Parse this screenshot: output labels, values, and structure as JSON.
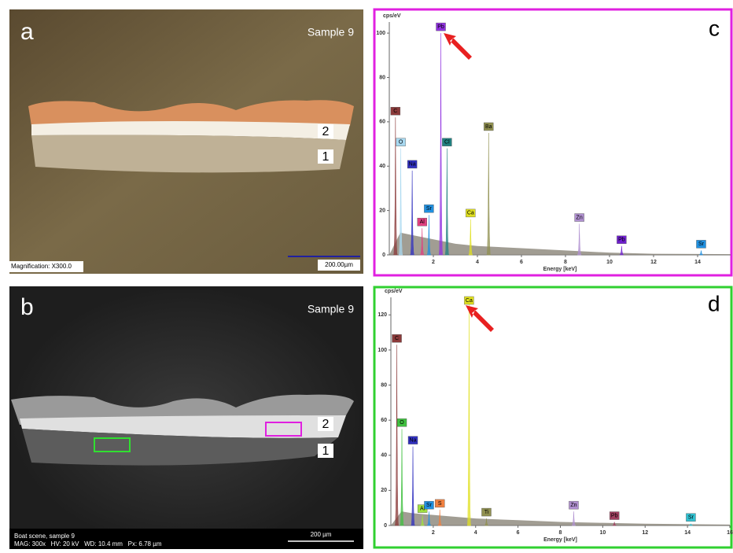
{
  "panel_a": {
    "letter": "a",
    "sample": "Sample 9",
    "layer_top": "2",
    "layer_bottom": "1",
    "magnification": "Magnification: X300.0",
    "scale": "200.00µm"
  },
  "panel_b": {
    "letter": "b",
    "sample": "Sample 9",
    "layer_top": "2",
    "layer_bottom": "1",
    "caption": "Boat scene, sample 9",
    "settings": "MAG: 300x   HV: 20 kV   WD: 10.4 mm   Px: 6.78 µm",
    "scale": "200 µm"
  },
  "chart_data": [
    {
      "type": "spectrum",
      "letter": "c",
      "y_label": "cps/eV",
      "x_label": "Energy [keV]",
      "border_color": "#e020e0",
      "xlim": [
        0,
        15.5
      ],
      "xticks": [
        2,
        4,
        6,
        8,
        10,
        12,
        14
      ],
      "ylim": [
        0,
        105
      ],
      "yticks": [
        0,
        20,
        40,
        60,
        80,
        100
      ],
      "background": {
        "x": [
          0,
          0.5,
          1,
          2,
          3,
          4,
          6,
          8,
          10,
          12,
          15.5
        ],
        "values": [
          0,
          10,
          9,
          7,
          5,
          4,
          3,
          2,
          1,
          0.5,
          0.3
        ]
      },
      "peaks": [
        {
          "label": "C",
          "color": "#8b3a3a",
          "x": 0.28,
          "y": 62
        },
        {
          "label": "O",
          "color": "#a8d8f0",
          "x": 0.52,
          "y": 48
        },
        {
          "label": "Na",
          "color": "#3030c0",
          "x": 1.04,
          "y": 38
        },
        {
          "label": "Al",
          "color": "#e04080",
          "x": 1.49,
          "y": 12
        },
        {
          "label": "Sr",
          "color": "#2090e0",
          "x": 1.8,
          "y": 18
        },
        {
          "label": "Pb",
          "color": "#9030e0",
          "x": 2.34,
          "y": 100
        },
        {
          "label": "Cl",
          "color": "#208080",
          "x": 2.62,
          "y": 48
        },
        {
          "label": "Ca",
          "color": "#e0e020",
          "x": 3.69,
          "y": 16
        },
        {
          "label": "Ba",
          "color": "#909050",
          "x": 4.51,
          "y": 55
        },
        {
          "label": "Zn",
          "color": "#b090d0",
          "x": 8.63,
          "y": 14
        },
        {
          "label": "Pb",
          "color": "#7020d0",
          "x": 10.55,
          "y": 4
        },
        {
          "label": "Sr",
          "color": "#2090e0",
          "x": 14.16,
          "y": 2
        }
      ]
    },
    {
      "type": "spectrum",
      "letter": "d",
      "y_label": "cps/eV",
      "x_label": "Energy [keV]",
      "border_color": "#30d030",
      "xlim": [
        0,
        16
      ],
      "xticks": [
        2,
        4,
        6,
        8,
        10,
        12,
        14,
        16
      ],
      "ylim": [
        0,
        130
      ],
      "yticks": [
        0,
        20,
        40,
        60,
        80,
        100,
        120
      ],
      "background": {
        "x": [
          0,
          0.5,
          1,
          2,
          3,
          4,
          6,
          8,
          10,
          12,
          16
        ],
        "values": [
          0,
          8,
          7,
          6,
          5,
          4,
          3,
          2,
          1.5,
          1,
          0.5
        ]
      },
      "peaks": [
        {
          "label": "C",
          "color": "#8b3a3a",
          "x": 0.28,
          "y": 103
        },
        {
          "label": "O",
          "color": "#40c040",
          "x": 0.52,
          "y": 55
        },
        {
          "label": "Na",
          "color": "#3030c0",
          "x": 1.04,
          "y": 45
        },
        {
          "label": "Al",
          "color": "#a0e040",
          "x": 1.49,
          "y": 6
        },
        {
          "label": "Sr",
          "color": "#2090e0",
          "x": 1.8,
          "y": 8
        },
        {
          "label": "S",
          "color": "#f08040",
          "x": 2.31,
          "y": 9
        },
        {
          "label": "Ca",
          "color": "#e0e020",
          "x": 3.69,
          "y": 128
        },
        {
          "label": "Ti",
          "color": "#909050",
          "x": 4.51,
          "y": 4
        },
        {
          "label": "Zn",
          "color": "#b090d0",
          "x": 8.63,
          "y": 8
        },
        {
          "label": "Pb",
          "color": "#a04060",
          "x": 10.55,
          "y": 2
        },
        {
          "label": "Sr",
          "color": "#30c0d0",
          "x": 14.16,
          "y": 1
        }
      ]
    }
  ]
}
